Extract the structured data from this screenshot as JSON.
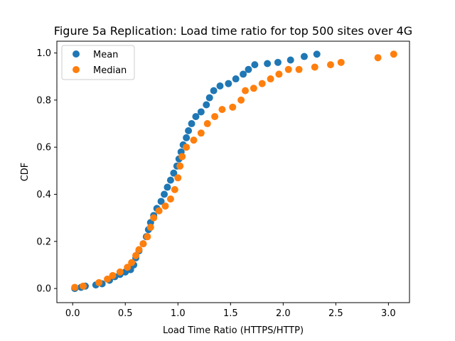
{
  "chart_data": {
    "type": "scatter",
    "title": "Figure 5a Replication: Load time ratio for top 500 sites over 4G",
    "xlabel": "Load Time Ratio (HTTPS/HTTP)",
    "ylabel": "CDF",
    "xlim": [
      -0.15,
      3.2
    ],
    "ylim": [
      -0.06,
      1.05
    ],
    "xticks": [
      0.0,
      0.5,
      1.0,
      1.5,
      2.0,
      2.5,
      3.0
    ],
    "xtick_labels": [
      "0.0",
      "0.5",
      "1.0",
      "1.5",
      "2.0",
      "2.5",
      "3.0"
    ],
    "yticks": [
      0.0,
      0.2,
      0.4,
      0.6,
      0.8,
      1.0
    ],
    "ytick_labels": [
      "0.0",
      "0.2",
      "0.4",
      "0.6",
      "0.8",
      "1.0"
    ],
    "grid": false,
    "legend_position": "top-left",
    "series": [
      {
        "name": "Mean",
        "color": "#1f77b4",
        "points": [
          [
            0.02,
            0.0
          ],
          [
            0.08,
            0.005
          ],
          [
            0.12,
            0.01
          ],
          [
            0.22,
            0.015
          ],
          [
            0.28,
            0.02
          ],
          [
            0.35,
            0.035
          ],
          [
            0.4,
            0.05
          ],
          [
            0.45,
            0.06
          ],
          [
            0.5,
            0.07
          ],
          [
            0.55,
            0.08
          ],
          [
            0.58,
            0.1
          ],
          [
            0.6,
            0.13
          ],
          [
            0.63,
            0.16
          ],
          [
            0.67,
            0.19
          ],
          [
            0.7,
            0.22
          ],
          [
            0.72,
            0.25
          ],
          [
            0.74,
            0.28
          ],
          [
            0.77,
            0.31
          ],
          [
            0.8,
            0.34
          ],
          [
            0.84,
            0.37
          ],
          [
            0.87,
            0.4
          ],
          [
            0.9,
            0.43
          ],
          [
            0.93,
            0.46
          ],
          [
            0.96,
            0.49
          ],
          [
            0.99,
            0.52
          ],
          [
            1.01,
            0.55
          ],
          [
            1.03,
            0.58
          ],
          [
            1.05,
            0.61
          ],
          [
            1.08,
            0.64
          ],
          [
            1.1,
            0.67
          ],
          [
            1.13,
            0.7
          ],
          [
            1.17,
            0.73
          ],
          [
            1.22,
            0.75
          ],
          [
            1.27,
            0.78
          ],
          [
            1.3,
            0.81
          ],
          [
            1.34,
            0.84
          ],
          [
            1.4,
            0.86
          ],
          [
            1.48,
            0.87
          ],
          [
            1.55,
            0.89
          ],
          [
            1.62,
            0.91
          ],
          [
            1.67,
            0.93
          ],
          [
            1.73,
            0.95
          ],
          [
            1.85,
            0.955
          ],
          [
            1.95,
            0.96
          ],
          [
            2.07,
            0.97
          ],
          [
            2.2,
            0.985
          ],
          [
            2.32,
            0.995
          ]
        ]
      },
      {
        "name": "Median",
        "color": "#ff7f0e",
        "points": [
          [
            0.02,
            0.005
          ],
          [
            0.1,
            0.01
          ],
          [
            0.25,
            0.025
          ],
          [
            0.33,
            0.04
          ],
          [
            0.38,
            0.055
          ],
          [
            0.45,
            0.07
          ],
          [
            0.52,
            0.09
          ],
          [
            0.56,
            0.11
          ],
          [
            0.6,
            0.14
          ],
          [
            0.63,
            0.165
          ],
          [
            0.67,
            0.19
          ],
          [
            0.71,
            0.22
          ],
          [
            0.74,
            0.26
          ],
          [
            0.77,
            0.3
          ],
          [
            0.82,
            0.33
          ],
          [
            0.88,
            0.35
          ],
          [
            0.93,
            0.38
          ],
          [
            0.97,
            0.42
          ],
          [
            1.0,
            0.47
          ],
          [
            1.02,
            0.52
          ],
          [
            1.04,
            0.56
          ],
          [
            1.08,
            0.6
          ],
          [
            1.15,
            0.63
          ],
          [
            1.22,
            0.66
          ],
          [
            1.28,
            0.7
          ],
          [
            1.35,
            0.73
          ],
          [
            1.42,
            0.76
          ],
          [
            1.52,
            0.77
          ],
          [
            1.6,
            0.8
          ],
          [
            1.64,
            0.84
          ],
          [
            1.72,
            0.85
          ],
          [
            1.8,
            0.87
          ],
          [
            1.88,
            0.89
          ],
          [
            1.96,
            0.91
          ],
          [
            2.05,
            0.93
          ],
          [
            2.15,
            0.93
          ],
          [
            2.3,
            0.94
          ],
          [
            2.45,
            0.95
          ],
          [
            2.55,
            0.96
          ],
          [
            2.9,
            0.98
          ],
          [
            3.05,
            0.995
          ]
        ]
      }
    ]
  }
}
